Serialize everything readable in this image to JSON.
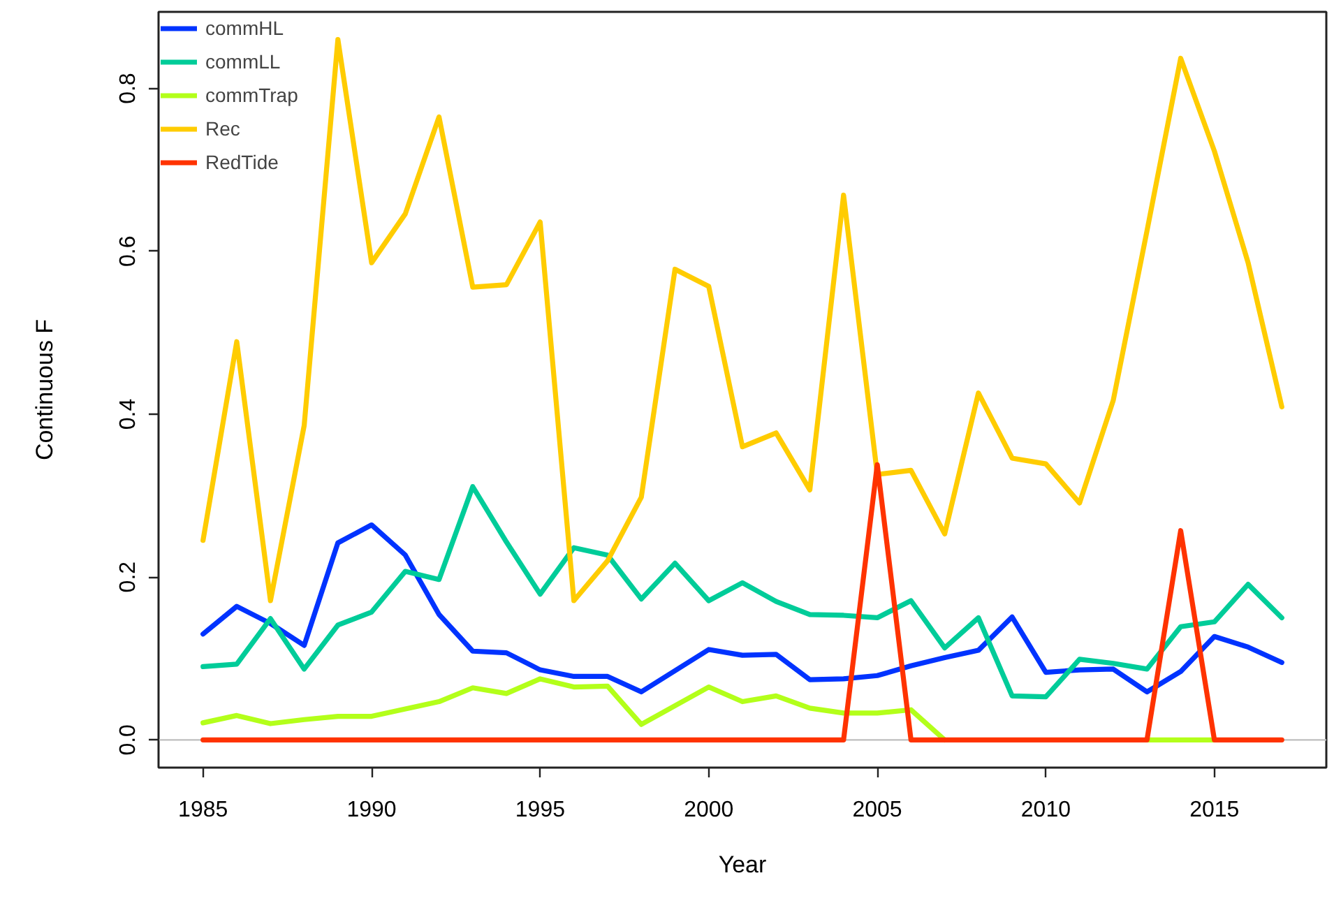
{
  "chart_data": {
    "type": "line",
    "xlabel": "Year",
    "ylabel": "Continuous F",
    "x": [
      1985,
      1986,
      1987,
      1988,
      1989,
      1990,
      1991,
      1992,
      1993,
      1994,
      1995,
      1996,
      1997,
      1998,
      1999,
      2000,
      2001,
      2002,
      2003,
      2004,
      2005,
      2006,
      2007,
      2008,
      2009,
      2010,
      2011,
      2012,
      2013,
      2014,
      2015,
      2016,
      2017
    ],
    "series": [
      {
        "name": "commHL",
        "color": "#0033ff",
        "values": [
          0.13,
          0.164,
          0.143,
          0.116,
          0.242,
          0.264,
          0.227,
          0.154,
          0.109,
          0.107,
          0.086,
          0.078,
          0.078,
          0.059,
          0.085,
          0.111,
          0.104,
          0.105,
          0.074,
          0.075,
          0.079,
          0.091,
          0.101,
          0.11,
          0.151,
          0.083,
          0.086,
          0.087,
          0.059,
          0.084,
          0.127,
          0.114,
          0.095
        ]
      },
      {
        "name": "commLL",
        "color": "#00cc99",
        "values": [
          0.09,
          0.093,
          0.149,
          0.087,
          0.141,
          0.157,
          0.207,
          0.197,
          0.311,
          0.243,
          0.179,
          0.236,
          0.227,
          0.173,
          0.217,
          0.171,
          0.193,
          0.17,
          0.154,
          0.153,
          0.15,
          0.171,
          0.113,
          0.15,
          0.054,
          0.053,
          0.099,
          0.094,
          0.087,
          0.139,
          0.145,
          0.191,
          0.15
        ]
      },
      {
        "name": "commTrap",
        "color": "#b3ff1a",
        "values": [
          0.021,
          0.03,
          0.02,
          0.025,
          0.029,
          0.029,
          0.038,
          0.047,
          0.064,
          0.057,
          0.075,
          0.065,
          0.066,
          0.019,
          0.042,
          0.065,
          0.047,
          0.054,
          0.039,
          0.033,
          0.033,
          0.037,
          0,
          null,
          null,
          null,
          null,
          null,
          0,
          0,
          0,
          null,
          null
        ]
      },
      {
        "name": "Rec",
        "color": "#ffcc00",
        "values": [
          0.245,
          0.489,
          0.171,
          0.386,
          0.86,
          0.586,
          0.646,
          0.765,
          0.556,
          0.559,
          0.636,
          0.171,
          0.22,
          0.298,
          0.578,
          0.557,
          0.36,
          0.377,
          0.307,
          0.669,
          0.326,
          0.331,
          0.253,
          0.426,
          0.346,
          0.339,
          0.291,
          0.417,
          0.625,
          0.837,
          0.723,
          0.586,
          0.409
        ]
      },
      {
        "name": "RedTide",
        "color": "#ff3300",
        "values": [
          0,
          0,
          0,
          0,
          0,
          0,
          0,
          0,
          0,
          0,
          0,
          0,
          0,
          0,
          0,
          0,
          0,
          0,
          0,
          0,
          0.338,
          0,
          0,
          0,
          0,
          0,
          0,
          0,
          0,
          0.257,
          0,
          0,
          0
        ]
      }
    ],
    "xlim": [
      1983.68,
      2018.32
    ],
    "ylim": [
      -0.034,
      0.894
    ],
    "xticks": [
      1985,
      1990,
      1995,
      2000,
      2005,
      2010,
      2015
    ],
    "yticks": [
      {
        "value": 0,
        "label": "0.0"
      },
      0.2,
      0.4,
      0.6,
      0.8
    ],
    "ref_lines": [
      {
        "axis": "y",
        "value": 0,
        "color": "#bebebe"
      }
    ],
    "grid": false,
    "legend": "top left"
  }
}
